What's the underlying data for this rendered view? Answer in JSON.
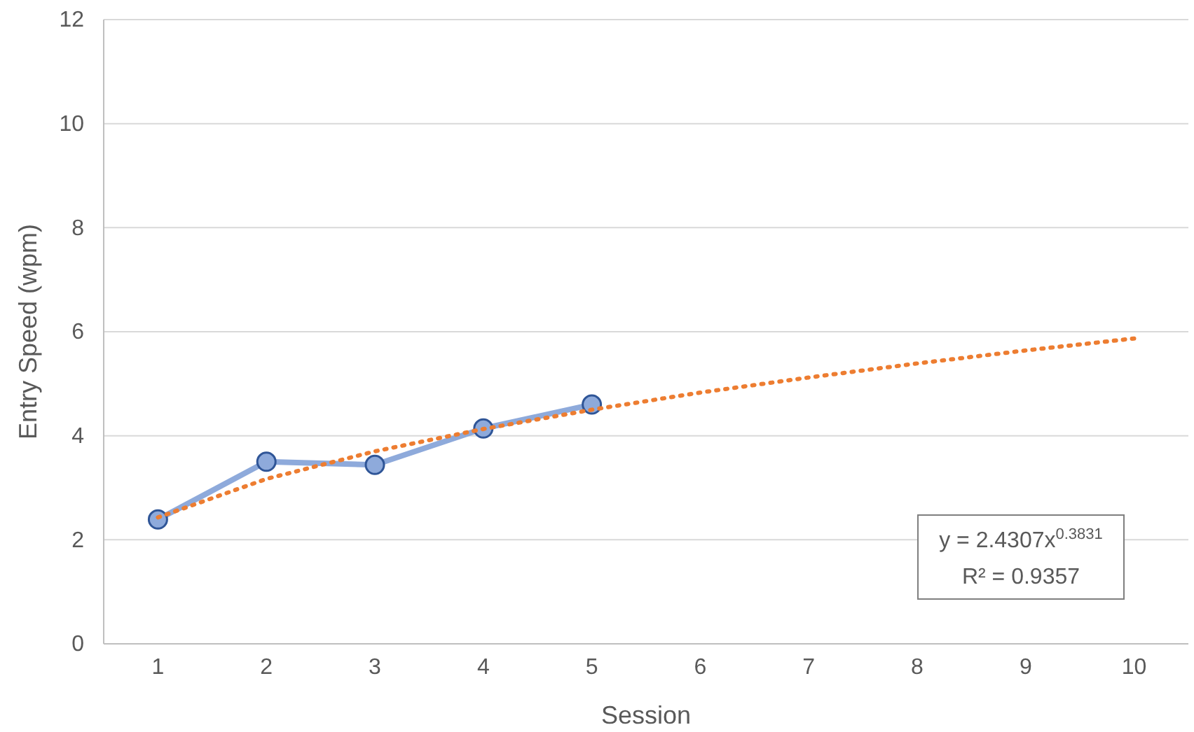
{
  "chart_data": {
    "type": "line",
    "xlabel": "Session",
    "ylabel": "Entry Speed (wpm)",
    "categories": [
      "1",
      "2",
      "3",
      "4",
      "5",
      "6",
      "7",
      "8",
      "9",
      "10"
    ],
    "series": [
      {
        "color": "#8eaadb",
        "values": [
          2.39,
          3.5,
          3.44,
          4.14,
          4.6,
          null,
          null,
          null,
          null,
          null
        ],
        "marker": "circle",
        "line_style": "solid"
      },
      {
        "type": "line",
        "color": "#ed7d31",
        "values": [
          2.43,
          3.17,
          3.7,
          4.13,
          4.5,
          4.83,
          5.12,
          5.39,
          5.64,
          5.87
        ],
        "marker": "none",
        "line_style": "dotted"
      }
    ],
    "ylim": [
      0,
      12
    ],
    "yticks": [
      0,
      2,
      4,
      6,
      8,
      10,
      12
    ],
    "grid": "y",
    "legend": false,
    "annotations": [
      "y = 2.4307x$^{0.3831}$",
      "R² = 0.9357"
    ]
  }
}
